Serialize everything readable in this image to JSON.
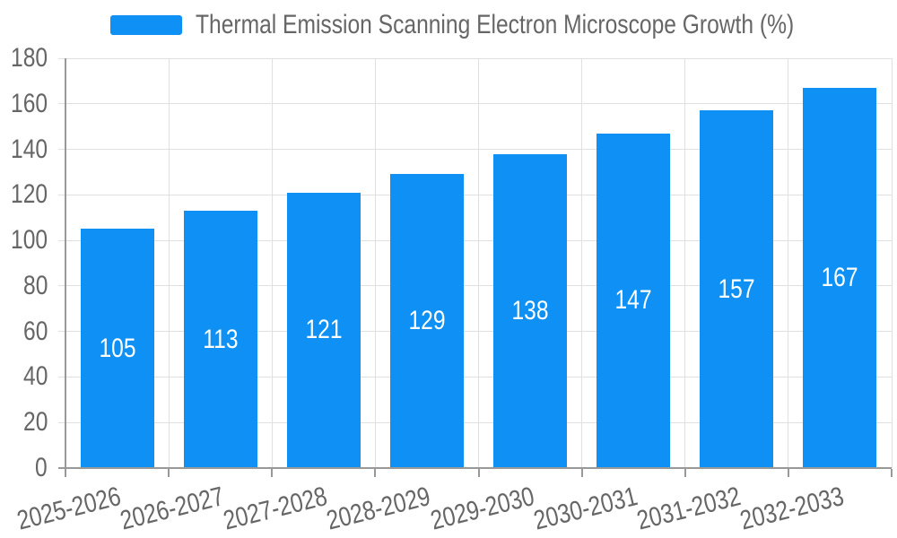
{
  "legend": {
    "label": "Thermal Emission Scanning Electron Microscope Growth (%)"
  },
  "colors": {
    "bar": "#0e90f4",
    "grid_line": "#e0e0e0",
    "axis_line": "#999999",
    "text": "#666666",
    "value_text": "#ffffff",
    "background": "#ffffff"
  },
  "chart_data": {
    "type": "bar",
    "title": "Thermal Emission Scanning Electron Microscope Growth (%)",
    "categories": [
      "2025-2026",
      "2026-2027",
      "2027-2028",
      "2028-2029",
      "2029-2030",
      "2030-2031",
      "2031-2032",
      "2032-2033"
    ],
    "values": [
      105,
      113,
      121,
      129,
      138,
      147,
      157,
      167
    ],
    "xlabel": "",
    "ylabel": "",
    "ylim": [
      0,
      180
    ],
    "ytick_step": 20,
    "yticks": [
      0,
      20,
      40,
      60,
      80,
      100,
      120,
      140,
      160,
      180
    ],
    "grid": true,
    "legend_position": "top-center",
    "value_label_position": "inside-center",
    "x_label_rotation_deg": -14
  }
}
